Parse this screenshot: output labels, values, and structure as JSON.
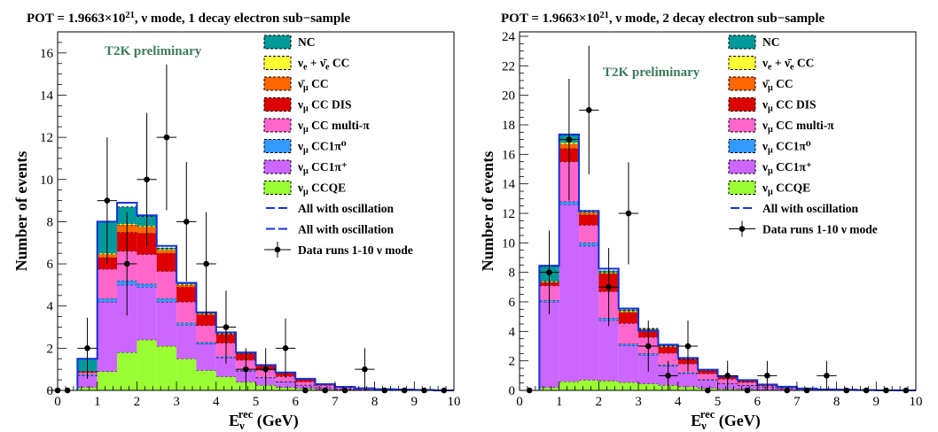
{
  "chart_data": [
    {
      "type": "bar",
      "subtype": "stacked-histogram",
      "title": "POT = 1.9663×10²¹,  ν mode, 1 decay electron sub−sample",
      "xlabel": "E_ν^rec (GeV)",
      "ylabel": "Number of events",
      "xlim": [
        0,
        10
      ],
      "ylim": [
        0,
        17
      ],
      "xticks": [
        0,
        1,
        2,
        3,
        4,
        5,
        6,
        7,
        8,
        9,
        10
      ],
      "yticks": [
        0,
        2,
        4,
        6,
        8,
        10,
        12,
        14,
        16
      ],
      "annotation": "T2K preliminary",
      "bin_edges": [
        0.5,
        1.0,
        1.5,
        2.0,
        2.5,
        3.0,
        3.5,
        4.0,
        4.5,
        5.0,
        5.5,
        6.0,
        6.5,
        7.0,
        7.5,
        8.0,
        8.5,
        9.0,
        9.5,
        10.0
      ],
      "series": [
        {
          "name": "ν_μ CCQE",
          "color": "#99ff33",
          "values": [
            0.15,
            0.9,
            1.8,
            2.4,
            2.1,
            1.5,
            0.95,
            0.65,
            0.4,
            0.25,
            0.15,
            0.1,
            0.05,
            0.04,
            0.02,
            0.01,
            0.01,
            0.0,
            0.0
          ]
        },
        {
          "name": "ν_μ CC1π⁺",
          "color": "#cc66ff",
          "values": [
            0.55,
            3.3,
            3.2,
            2.5,
            2.1,
            1.6,
            1.25,
            0.9,
            0.5,
            0.35,
            0.25,
            0.15,
            0.08,
            0.05,
            0.03,
            0.02,
            0.01,
            0.01,
            0.0
          ]
        },
        {
          "name": "ν_μ CC1π⁰",
          "color": "#3399ff",
          "values": [
            0.05,
            0.15,
            0.2,
            0.15,
            0.15,
            0.1,
            0.08,
            0.05,
            0.04,
            0.02,
            0.02,
            0.01,
            0.01,
            0.0,
            0.0,
            0.0,
            0.0,
            0.0,
            0.0
          ]
        },
        {
          "name": "ν_μ CC multi-π",
          "color": "#ff66cc",
          "values": [
            0.1,
            1.4,
            1.4,
            1.4,
            1.3,
            1.0,
            0.8,
            0.65,
            0.5,
            0.35,
            0.25,
            0.15,
            0.1,
            0.05,
            0.03,
            0.02,
            0.01,
            0.01,
            0.0
          ]
        },
        {
          "name": "ν_μ CC DIS",
          "color": "#dd0000",
          "values": [
            0.05,
            0.55,
            0.9,
            1.0,
            0.85,
            0.7,
            0.5,
            0.4,
            0.3,
            0.2,
            0.15,
            0.1,
            0.05,
            0.03,
            0.02,
            0.01,
            0.01,
            0.0,
            0.0
          ]
        },
        {
          "name": "ν̄_μ CC",
          "color": "#ff6600",
          "values": [
            0.0,
            0.15,
            0.35,
            0.3,
            0.15,
            0.1,
            0.05,
            0.04,
            0.03,
            0.02,
            0.01,
            0.01,
            0.0,
            0.0,
            0.0,
            0.0,
            0.0,
            0.0,
            0.0
          ]
        },
        {
          "name": "ν_e + ν̄_e CC",
          "color": "#ffff33",
          "values": [
            0.0,
            0.05,
            0.05,
            0.05,
            0.05,
            0.04,
            0.03,
            0.02,
            0.02,
            0.01,
            0.01,
            0.01,
            0.0,
            0.0,
            0.0,
            0.0,
            0.0,
            0.0,
            0.0
          ]
        },
        {
          "name": "NC",
          "color": "#009999",
          "values": [
            0.6,
            1.5,
            0.8,
            0.45,
            0.05,
            0.06,
            0.04,
            0.04,
            0.01,
            0.0,
            0.01,
            0.02,
            0.01,
            0.0,
            0.0,
            0.0,
            0.0,
            0.0,
            0.0
          ]
        }
      ],
      "oscillation_totals": [
        1.5,
        8.0,
        8.9,
        8.3,
        6.85,
        5.1,
        3.7,
        2.75,
        1.8,
        1.2,
        0.85,
        0.55,
        0.3,
        0.17,
        0.1,
        0.06,
        0.04,
        0.02,
        0.0
      ],
      "legend_extra": [
        "All with oscillation",
        "All with oscillation",
        "Data runs 1-10  ν mode"
      ],
      "data_points": [
        {
          "x": 0.0,
          "y": 0,
          "err": 0
        },
        {
          "x": 0.25,
          "y": 0,
          "err": 0
        },
        {
          "x": 0.75,
          "y": 2,
          "err": 1.45
        },
        {
          "x": 1.25,
          "y": 9,
          "err": 3.0
        },
        {
          "x": 1.75,
          "y": 6,
          "err": 2.45
        },
        {
          "x": 2.25,
          "y": 10,
          "err": 3.16
        },
        {
          "x": 2.75,
          "y": 12,
          "err": 3.46
        },
        {
          "x": 3.25,
          "y": 8,
          "err": 2.83
        },
        {
          "x": 3.75,
          "y": 6,
          "err": 2.45
        },
        {
          "x": 4.25,
          "y": 3,
          "err": 1.73
        },
        {
          "x": 4.75,
          "y": 1,
          "err": 1.0
        },
        {
          "x": 5.25,
          "y": 1,
          "err": 1.0
        },
        {
          "x": 5.75,
          "y": 2,
          "err": 1.41
        },
        {
          "x": 6.25,
          "y": 0,
          "err": 0
        },
        {
          "x": 6.75,
          "y": 0,
          "err": 0
        },
        {
          "x": 7.25,
          "y": 0,
          "err": 0
        },
        {
          "x": 7.75,
          "y": 1,
          "err": 1.0
        },
        {
          "x": 8.25,
          "y": 0,
          "err": 0
        },
        {
          "x": 8.75,
          "y": 0,
          "err": 0
        },
        {
          "x": 9.25,
          "y": 0,
          "err": 0
        },
        {
          "x": 9.75,
          "y": 0,
          "err": 0
        }
      ]
    },
    {
      "type": "bar",
      "subtype": "stacked-histogram",
      "title": "POT = 1.9663×10²¹,  ν mode, 2 decay electron sub−sample",
      "xlabel": "E_ν^rec (GeV)",
      "ylabel": "Number of events",
      "xlim": [
        0,
        10
      ],
      "ylim": [
        0,
        24.3
      ],
      "xticks": [
        0,
        1,
        2,
        3,
        4,
        5,
        6,
        7,
        8,
        9,
        10
      ],
      "yticks": [
        0,
        2,
        4,
        6,
        8,
        10,
        12,
        14,
        16,
        18,
        20,
        22,
        24
      ],
      "annotation": "T2K preliminary",
      "bin_edges": [
        0.5,
        1.0,
        1.5,
        2.0,
        2.5,
        3.0,
        3.5,
        4.0,
        4.5,
        5.0,
        5.5,
        6.0,
        6.5,
        7.0,
        7.5,
        8.0,
        8.5,
        9.0,
        9.5,
        10.0
      ],
      "series": [
        {
          "name": "ν_μ CCQE",
          "color": "#99ff33",
          "values": [
            0.2,
            0.6,
            0.7,
            0.65,
            0.55,
            0.45,
            0.35,
            0.25,
            0.15,
            0.1,
            0.08,
            0.05,
            0.03,
            0.02,
            0.01,
            0.01,
            0.0,
            0.0,
            0.0
          ]
        },
        {
          "name": "ν_μ CC1π⁺",
          "color": "#cc66ff",
          "values": [
            5.8,
            12.0,
            9.1,
            4.1,
            2.5,
            1.95,
            1.3,
            0.9,
            0.55,
            0.35,
            0.25,
            0.15,
            0.1,
            0.05,
            0.03,
            0.02,
            0.01,
            0.01,
            0.0
          ]
        },
        {
          "name": "ν_μ CC1π⁰",
          "color": "#3399ff",
          "values": [
            0.1,
            0.2,
            0.2,
            0.15,
            0.1,
            0.1,
            0.08,
            0.05,
            0.04,
            0.02,
            0.02,
            0.01,
            0.01,
            0.0,
            0.0,
            0.0,
            0.0,
            0.0,
            0.0
          ]
        },
        {
          "name": "ν_μ CC multi-π",
          "color": "#ff66cc",
          "values": [
            1.0,
            2.7,
            1.2,
            1.8,
            1.4,
            1.1,
            0.8,
            0.6,
            0.4,
            0.3,
            0.2,
            0.1,
            0.06,
            0.04,
            0.02,
            0.01,
            0.01,
            0.0,
            0.0
          ]
        },
        {
          "name": "ν_μ CC DIS",
          "color": "#dd0000",
          "values": [
            0.2,
            0.9,
            0.7,
            1.2,
            0.7,
            0.45,
            0.4,
            0.3,
            0.2,
            0.15,
            0.1,
            0.06,
            0.04,
            0.02,
            0.01,
            0.01,
            0.0,
            0.0,
            0.0
          ]
        },
        {
          "name": "ν̄_μ CC",
          "color": "#ff6600",
          "values": [
            0.05,
            0.3,
            0.15,
            0.05,
            0.1,
            0.08,
            0.05,
            0.03,
            0.02,
            0.01,
            0.01,
            0.0,
            0.0,
            0.0,
            0.0,
            0.0,
            0.0,
            0.0,
            0.0
          ]
        },
        {
          "name": "ν_e + ν̄_e CC",
          "color": "#ffff33",
          "values": [
            0.05,
            0.1,
            0.05,
            0.05,
            0.05,
            0.04,
            0.03,
            0.02,
            0.02,
            0.01,
            0.01,
            0.0,
            0.0,
            0.0,
            0.0,
            0.0,
            0.0,
            0.0,
            0.0
          ]
        },
        {
          "name": "NC",
          "color": "#009999",
          "values": [
            1.0,
            0.5,
            0.1,
            0.1,
            0.05,
            0.03,
            0.03,
            0.02,
            0.02,
            0.01,
            0.01,
            0.01,
            0.01,
            0.0,
            0.0,
            0.0,
            0.0,
            0.0,
            0.0
          ]
        }
      ],
      "oscillation_totals": [
        8.45,
        17.35,
        12.15,
        8.25,
        5.55,
        4.05,
        3.1,
        2.2,
        1.4,
        0.95,
        0.7,
        0.4,
        0.25,
        0.13,
        0.07,
        0.05,
        0.02,
        0.01,
        0.0
      ],
      "legend_extra": [
        "All with oscillation",
        "Data runs 1-10  ν mode"
      ],
      "data_points": [
        {
          "x": 0.25,
          "y": 0,
          "err": 0
        },
        {
          "x": 0.75,
          "y": 8,
          "err": 2.83
        },
        {
          "x": 1.25,
          "y": 17,
          "err": 4.12
        },
        {
          "x": 1.75,
          "y": 19,
          "err": 4.36
        },
        {
          "x": 2.25,
          "y": 7,
          "err": 2.65
        },
        {
          "x": 2.75,
          "y": 12,
          "err": 3.46
        },
        {
          "x": 3.25,
          "y": 3,
          "err": 1.73
        },
        {
          "x": 3.75,
          "y": 1,
          "err": 1.0
        },
        {
          "x": 4.25,
          "y": 3,
          "err": 1.73
        },
        {
          "x": 4.75,
          "y": 0,
          "err": 0
        },
        {
          "x": 5.25,
          "y": 1,
          "err": 1.0
        },
        {
          "x": 5.75,
          "y": 0,
          "err": 0
        },
        {
          "x": 6.25,
          "y": 1,
          "err": 1.0
        },
        {
          "x": 6.75,
          "y": 0,
          "err": 0
        },
        {
          "x": 7.25,
          "y": 0,
          "err": 0
        },
        {
          "x": 7.75,
          "y": 1,
          "err": 1.0
        },
        {
          "x": 8.25,
          "y": 0,
          "err": 0
        },
        {
          "x": 8.75,
          "y": 0,
          "err": 0
        },
        {
          "x": 9.25,
          "y": 0,
          "err": 0
        },
        {
          "x": 9.75,
          "y": 0,
          "err": 0
        }
      ]
    }
  ]
}
